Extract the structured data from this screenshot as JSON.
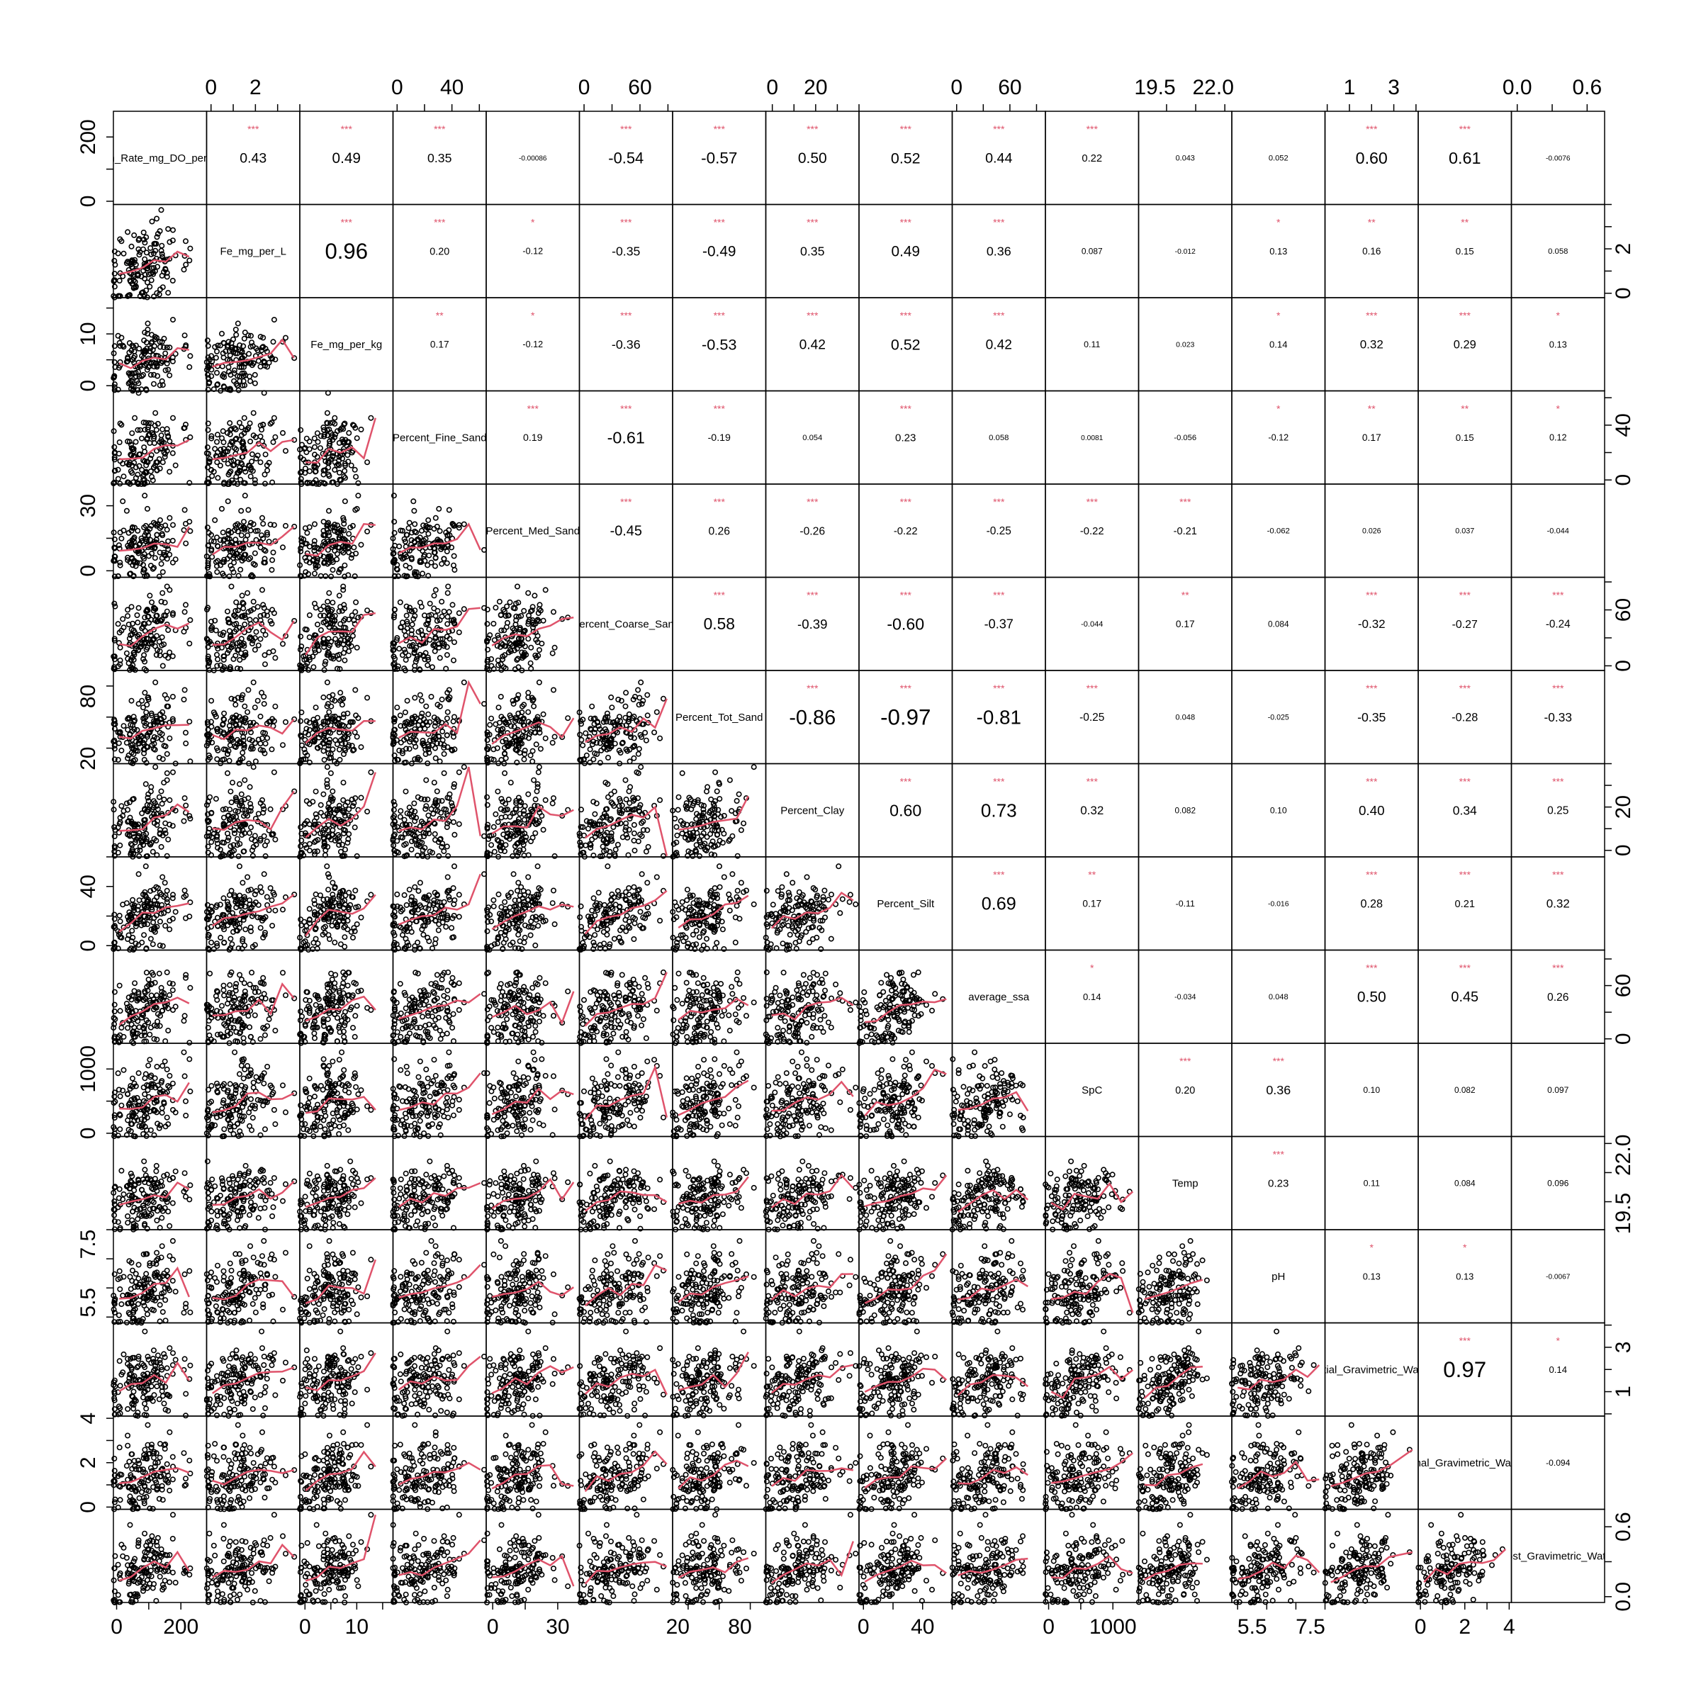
{
  "chart_data": {
    "type": "scatter",
    "variables": [
      "Respiration_Rate_mg_DO_per_kg_per_H",
      "Fe_mg_per_L",
      "Fe_mg_per_kg",
      "Percent_Fine_Sand",
      "Percent_Med_Sand",
      "Percent_Coarse_Sand",
      "Percent_Tot_Sand",
      "Percent_Clay",
      "Percent_Silt",
      "average_ssa",
      "SpC",
      "Temp",
      "pH",
      "Initial_Gravimetric_Water",
      "Final_Gravimetric_Water",
      "Lost_Gravimetric_Water"
    ],
    "ranges": [
      [
        -10,
        280
      ],
      [
        -0.2,
        4.0
      ],
      [
        -1,
        17
      ],
      [
        -3,
        65
      ],
      [
        -3,
        40
      ],
      [
        -5,
        95
      ],
      [
        15,
        105
      ],
      [
        -3,
        40
      ],
      [
        -3,
        60
      ],
      [
        -5,
        100
      ],
      [
        -50,
        1400
      ],
      [
        18.8,
        22.8
      ],
      [
        4.8,
        8.0
      ],
      [
        -0.1,
        4.1
      ],
      [
        -0.1,
        4.1
      ],
      [
        -0.05,
        0.75
      ]
    ],
    "tick_labels": [
      [
        "0",
        "200"
      ],
      [
        "0",
        "2"
      ],
      [
        "0",
        "10"
      ],
      [
        "0",
        "40"
      ],
      [
        "0",
        "30"
      ],
      [
        "0",
        "60"
      ],
      [
        "20",
        "80"
      ],
      [
        "0",
        "20"
      ],
      [
        "0",
        "40"
      ],
      [
        "0",
        "60"
      ],
      [
        "0",
        "1000"
      ],
      [
        "19.5",
        "22.0"
      ],
      [
        "5.5",
        "7.5"
      ],
      [
        "1",
        "3"
      ],
      [
        "0",
        "2",
        "4"
      ],
      [
        "0.0",
        "0.6"
      ]
    ],
    "tick_values": [
      [
        0,
        200
      ],
      [
        0,
        2
      ],
      [
        0,
        10
      ],
      [
        0,
        40
      ],
      [
        0,
        30
      ],
      [
        0,
        60
      ],
      [
        20,
        80
      ],
      [
        0,
        20
      ],
      [
        0,
        40
      ],
      [
        0,
        60
      ],
      [
        0,
        1000
      ],
      [
        19.5,
        22.0
      ],
      [
        5.5,
        7.5
      ],
      [
        1,
        3
      ],
      [
        0,
        2,
        4
      ],
      [
        0.0,
        0.6
      ]
    ],
    "correlations": [
      {
        "i": 0,
        "j": 1,
        "r": "0.43",
        "sig": "***"
      },
      {
        "i": 0,
        "j": 2,
        "r": "0.49",
        "sig": "***"
      },
      {
        "i": 0,
        "j": 3,
        "r": "0.35",
        "sig": "***"
      },
      {
        "i": 0,
        "j": 4,
        "r": "-0.00086",
        "sig": ""
      },
      {
        "i": 0,
        "j": 5,
        "r": "-0.54",
        "sig": "***"
      },
      {
        "i": 0,
        "j": 6,
        "r": "-0.57",
        "sig": "***"
      },
      {
        "i": 0,
        "j": 7,
        "r": "0.50",
        "sig": "***"
      },
      {
        "i": 0,
        "j": 8,
        "r": "0.52",
        "sig": "***"
      },
      {
        "i": 0,
        "j": 9,
        "r": "0.44",
        "sig": "***"
      },
      {
        "i": 0,
        "j": 10,
        "r": "0.22",
        "sig": "***"
      },
      {
        "i": 0,
        "j": 11,
        "r": "0.043",
        "sig": ""
      },
      {
        "i": 0,
        "j": 12,
        "r": "0.052",
        "sig": ""
      },
      {
        "i": 0,
        "j": 13,
        "r": "0.60",
        "sig": "***"
      },
      {
        "i": 0,
        "j": 14,
        "r": "0.61",
        "sig": "***"
      },
      {
        "i": 0,
        "j": 15,
        "r": "-0.0076",
        "sig": ""
      },
      {
        "i": 1,
        "j": 2,
        "r": "0.96",
        "sig": "***"
      },
      {
        "i": 1,
        "j": 3,
        "r": "0.20",
        "sig": "***"
      },
      {
        "i": 1,
        "j": 4,
        "r": "-0.12",
        "sig": "*"
      },
      {
        "i": 1,
        "j": 5,
        "r": "-0.35",
        "sig": "***"
      },
      {
        "i": 1,
        "j": 6,
        "r": "-0.49",
        "sig": "***"
      },
      {
        "i": 1,
        "j": 7,
        "r": "0.35",
        "sig": "***"
      },
      {
        "i": 1,
        "j": 8,
        "r": "0.49",
        "sig": "***"
      },
      {
        "i": 1,
        "j": 9,
        "r": "0.36",
        "sig": "***"
      },
      {
        "i": 1,
        "j": 10,
        "r": "0.087",
        "sig": ""
      },
      {
        "i": 1,
        "j": 11,
        "r": "-0.012",
        "sig": ""
      },
      {
        "i": 1,
        "j": 12,
        "r": "0.13",
        "sig": "*"
      },
      {
        "i": 1,
        "j": 13,
        "r": "0.16",
        "sig": "**"
      },
      {
        "i": 1,
        "j": 14,
        "r": "0.15",
        "sig": "**"
      },
      {
        "i": 1,
        "j": 15,
        "r": "0.058",
        "sig": ""
      },
      {
        "i": 2,
        "j": 3,
        "r": "0.17",
        "sig": "**"
      },
      {
        "i": 2,
        "j": 4,
        "r": "-0.12",
        "sig": "*"
      },
      {
        "i": 2,
        "j": 5,
        "r": "-0.36",
        "sig": "***"
      },
      {
        "i": 2,
        "j": 6,
        "r": "-0.53",
        "sig": "***"
      },
      {
        "i": 2,
        "j": 7,
        "r": "0.42",
        "sig": "***"
      },
      {
        "i": 2,
        "j": 8,
        "r": "0.52",
        "sig": "***"
      },
      {
        "i": 2,
        "j": 9,
        "r": "0.42",
        "sig": "***"
      },
      {
        "i": 2,
        "j": 10,
        "r": "0.11",
        "sig": ""
      },
      {
        "i": 2,
        "j": 11,
        "r": "0.023",
        "sig": ""
      },
      {
        "i": 2,
        "j": 12,
        "r": "0.14",
        "sig": "*"
      },
      {
        "i": 2,
        "j": 13,
        "r": "0.32",
        "sig": "***"
      },
      {
        "i": 2,
        "j": 14,
        "r": "0.29",
        "sig": "***"
      },
      {
        "i": 2,
        "j": 15,
        "r": "0.13",
        "sig": "*"
      },
      {
        "i": 3,
        "j": 4,
        "r": "0.19",
        "sig": "***"
      },
      {
        "i": 3,
        "j": 5,
        "r": "-0.61",
        "sig": "***"
      },
      {
        "i": 3,
        "j": 6,
        "r": "-0.19",
        "sig": "***"
      },
      {
        "i": 3,
        "j": 7,
        "r": "0.054",
        "sig": ""
      },
      {
        "i": 3,
        "j": 8,
        "r": "0.23",
        "sig": "***"
      },
      {
        "i": 3,
        "j": 9,
        "r": "0.058",
        "sig": ""
      },
      {
        "i": 3,
        "j": 10,
        "r": "0.0081",
        "sig": ""
      },
      {
        "i": 3,
        "j": 11,
        "r": "-0.056",
        "sig": ""
      },
      {
        "i": 3,
        "j": 12,
        "r": "-0.12",
        "sig": "*"
      },
      {
        "i": 3,
        "j": 13,
        "r": "0.17",
        "sig": "**"
      },
      {
        "i": 3,
        "j": 14,
        "r": "0.15",
        "sig": "**"
      },
      {
        "i": 3,
        "j": 15,
        "r": "0.12",
        "sig": "*"
      },
      {
        "i": 4,
        "j": 5,
        "r": "-0.45",
        "sig": "***"
      },
      {
        "i": 4,
        "j": 6,
        "r": "0.26",
        "sig": "***"
      },
      {
        "i": 4,
        "j": 7,
        "r": "-0.26",
        "sig": "***"
      },
      {
        "i": 4,
        "j": 8,
        "r": "-0.22",
        "sig": "***"
      },
      {
        "i": 4,
        "j": 9,
        "r": "-0.25",
        "sig": "***"
      },
      {
        "i": 4,
        "j": 10,
        "r": "-0.22",
        "sig": "***"
      },
      {
        "i": 4,
        "j": 11,
        "r": "-0.21",
        "sig": "***"
      },
      {
        "i": 4,
        "j": 12,
        "r": "-0.062",
        "sig": ""
      },
      {
        "i": 4,
        "j": 13,
        "r": "0.026",
        "sig": ""
      },
      {
        "i": 4,
        "j": 14,
        "r": "0.037",
        "sig": ""
      },
      {
        "i": 4,
        "j": 15,
        "r": "-0.044",
        "sig": ""
      },
      {
        "i": 5,
        "j": 6,
        "r": "0.58",
        "sig": "***"
      },
      {
        "i": 5,
        "j": 7,
        "r": "-0.39",
        "sig": "***"
      },
      {
        "i": 5,
        "j": 8,
        "r": "-0.60",
        "sig": "***"
      },
      {
        "i": 5,
        "j": 9,
        "r": "-0.37",
        "sig": "***"
      },
      {
        "i": 5,
        "j": 10,
        "r": "-0.044",
        "sig": ""
      },
      {
        "i": 5,
        "j": 11,
        "r": "0.17",
        "sig": "**"
      },
      {
        "i": 5,
        "j": 12,
        "r": "0.084",
        "sig": ""
      },
      {
        "i": 5,
        "j": 13,
        "r": "-0.32",
        "sig": "***"
      },
      {
        "i": 5,
        "j": 14,
        "r": "-0.27",
        "sig": "***"
      },
      {
        "i": 5,
        "j": 15,
        "r": "-0.24",
        "sig": "***"
      },
      {
        "i": 6,
        "j": 7,
        "r": "-0.86",
        "sig": "***"
      },
      {
        "i": 6,
        "j": 8,
        "r": "-0.97",
        "sig": "***"
      },
      {
        "i": 6,
        "j": 9,
        "r": "-0.81",
        "sig": "***"
      },
      {
        "i": 6,
        "j": 10,
        "r": "-0.25",
        "sig": "***"
      },
      {
        "i": 6,
        "j": 11,
        "r": "0.048",
        "sig": ""
      },
      {
        "i": 6,
        "j": 12,
        "r": "-0.025",
        "sig": ""
      },
      {
        "i": 6,
        "j": 13,
        "r": "-0.35",
        "sig": "***"
      },
      {
        "i": 6,
        "j": 14,
        "r": "-0.28",
        "sig": "***"
      },
      {
        "i": 6,
        "j": 15,
        "r": "-0.33",
        "sig": "***"
      },
      {
        "i": 7,
        "j": 8,
        "r": "0.60",
        "sig": "***"
      },
      {
        "i": 7,
        "j": 9,
        "r": "0.73",
        "sig": "***"
      },
      {
        "i": 7,
        "j": 10,
        "r": "0.32",
        "sig": "***"
      },
      {
        "i": 7,
        "j": 11,
        "r": "0.082",
        "sig": ""
      },
      {
        "i": 7,
        "j": 12,
        "r": "0.10",
        "sig": ""
      },
      {
        "i": 7,
        "j": 13,
        "r": "0.40",
        "sig": "***"
      },
      {
        "i": 7,
        "j": 14,
        "r": "0.34",
        "sig": "***"
      },
      {
        "i": 7,
        "j": 15,
        "r": "0.25",
        "sig": "***"
      },
      {
        "i": 8,
        "j": 9,
        "r": "0.69",
        "sig": "***"
      },
      {
        "i": 8,
        "j": 10,
        "r": "0.17",
        "sig": "**"
      },
      {
        "i": 8,
        "j": 11,
        "r": "-0.11",
        "sig": ""
      },
      {
        "i": 8,
        "j": 12,
        "r": "-0.016",
        "sig": ""
      },
      {
        "i": 8,
        "j": 13,
        "r": "0.28",
        "sig": "***"
      },
      {
        "i": 8,
        "j": 14,
        "r": "0.21",
        "sig": "***"
      },
      {
        "i": 8,
        "j": 15,
        "r": "0.32",
        "sig": "***"
      },
      {
        "i": 9,
        "j": 10,
        "r": "0.14",
        "sig": "*"
      },
      {
        "i": 9,
        "j": 11,
        "r": "-0.034",
        "sig": ""
      },
      {
        "i": 9,
        "j": 12,
        "r": "0.048",
        "sig": ""
      },
      {
        "i": 9,
        "j": 13,
        "r": "0.50",
        "sig": "***"
      },
      {
        "i": 9,
        "j": 14,
        "r": "0.45",
        "sig": "***"
      },
      {
        "i": 9,
        "j": 15,
        "r": "0.26",
        "sig": "***"
      },
      {
        "i": 10,
        "j": 11,
        "r": "0.20",
        "sig": "***"
      },
      {
        "i": 10,
        "j": 12,
        "r": "0.36",
        "sig": "***"
      },
      {
        "i": 10,
        "j": 13,
        "r": "0.10",
        "sig": ""
      },
      {
        "i": 10,
        "j": 14,
        "r": "0.082",
        "sig": ""
      },
      {
        "i": 10,
        "j": 15,
        "r": "0.097",
        "sig": ""
      },
      {
        "i": 11,
        "j": 12,
        "r": "0.23",
        "sig": "***"
      },
      {
        "i": 11,
        "j": 13,
        "r": "0.11",
        "sig": ""
      },
      {
        "i": 11,
        "j": 14,
        "r": "0.084",
        "sig": ""
      },
      {
        "i": 11,
        "j": 15,
        "r": "0.096",
        "sig": ""
      },
      {
        "i": 12,
        "j": 13,
        "r": "0.13",
        "sig": "*"
      },
      {
        "i": 12,
        "j": 14,
        "r": "0.13",
        "sig": "*"
      },
      {
        "i": 12,
        "j": 15,
        "r": "-0.0067",
        "sig": ""
      },
      {
        "i": 13,
        "j": 14,
        "r": "0.97",
        "sig": "***"
      },
      {
        "i": 13,
        "j": 15,
        "r": "0.14",
        "sig": "*"
      },
      {
        "i": 14,
        "j": 15,
        "r": "-0.094",
        "sig": ""
      }
    ],
    "point_count_per_panel": 150,
    "colors": {
      "points": "#000000",
      "smooth": "#DF536B",
      "stars": "#DF536B",
      "frame": "#000000",
      "background": "#FFFFFF"
    }
  }
}
